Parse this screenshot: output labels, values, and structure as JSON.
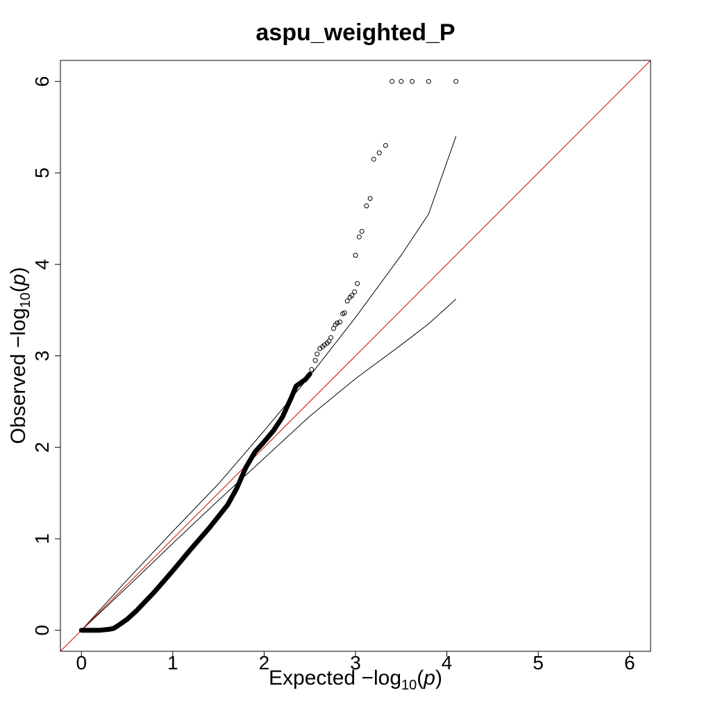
{
  "chart_data": {
    "type": "scatter",
    "title": "aspu_weighted_P",
    "xlabel": {
      "prefix": "Expected ",
      "minus": "−",
      "log": "log",
      "sub": "10",
      "open": "(",
      "p": "p",
      "close": ")"
    },
    "ylabel": {
      "prefix": "Observed ",
      "minus": "−",
      "log": "log",
      "sub": "10",
      "open": "(",
      "p": "p",
      "close": ")"
    },
    "xlim": [
      -0.23,
      6.23
    ],
    "ylim": [
      -0.23,
      6.23
    ],
    "x_ticks": [
      0,
      1,
      2,
      3,
      4,
      5,
      6
    ],
    "y_ticks": [
      0,
      1,
      2,
      3,
      4,
      5,
      6
    ],
    "x_tick_labels": [
      "0",
      "1",
      "2",
      "3",
      "4",
      "5",
      "6"
    ],
    "y_tick_labels": [
      "0",
      "1",
      "2",
      "3",
      "4",
      "5",
      "6"
    ],
    "grid": false,
    "reference_line": {
      "slope": 1,
      "intercept": 0,
      "color": "#cc0000"
    },
    "confidence_band": {
      "upper": [
        [
          0,
          0
        ],
        [
          0.5,
          0.55
        ],
        [
          1,
          1.08
        ],
        [
          1.5,
          1.6
        ],
        [
          2,
          2.18
        ],
        [
          2.5,
          2.78
        ],
        [
          3,
          3.42
        ],
        [
          3.5,
          4.1
        ],
        [
          3.8,
          4.55
        ],
        [
          4.1,
          5.4
        ]
      ],
      "lower": [
        [
          0,
          0
        ],
        [
          0.5,
          0.47
        ],
        [
          1,
          0.95
        ],
        [
          1.5,
          1.42
        ],
        [
          2,
          1.88
        ],
        [
          2.5,
          2.34
        ],
        [
          3,
          2.75
        ],
        [
          3.5,
          3.12
        ],
        [
          3.8,
          3.35
        ],
        [
          4.1,
          3.62
        ]
      ]
    },
    "bulk_curve": [
      [
        0,
        0
      ],
      [
        0.2,
        0
      ],
      [
        0.3,
        0.01
      ],
      [
        0.35,
        0.02
      ],
      [
        0.4,
        0.05
      ],
      [
        0.5,
        0.12
      ],
      [
        0.6,
        0.21
      ],
      [
        0.8,
        0.42
      ],
      [
        1,
        0.65
      ],
      [
        1.2,
        0.89
      ],
      [
        1.4,
        1.12
      ],
      [
        1.6,
        1.37
      ],
      [
        1.7,
        1.55
      ],
      [
        1.8,
        1.78
      ],
      [
        1.9,
        1.95
      ],
      [
        2,
        2.06
      ],
      [
        2.1,
        2.18
      ],
      [
        2.2,
        2.33
      ],
      [
        2.3,
        2.55
      ],
      [
        2.35,
        2.67
      ],
      [
        2.45,
        2.74
      ],
      [
        2.5,
        2.8
      ]
    ],
    "points": [
      [
        2.52,
        2.85
      ],
      [
        2.56,
        2.95
      ],
      [
        2.58,
        3.02
      ],
      [
        2.61,
        3.08
      ],
      [
        2.64,
        3.1
      ],
      [
        2.66,
        3.12
      ],
      [
        2.69,
        3.14
      ],
      [
        2.71,
        3.16
      ],
      [
        2.73,
        3.2
      ],
      [
        2.76,
        3.3
      ],
      [
        2.78,
        3.34
      ],
      [
        2.8,
        3.36
      ],
      [
        2.83,
        3.37
      ],
      [
        2.86,
        3.46
      ],
      [
        2.88,
        3.47
      ],
      [
        2.91,
        3.6
      ],
      [
        2.94,
        3.64
      ],
      [
        2.96,
        3.66
      ],
      [
        2.99,
        3.7
      ],
      [
        3.02,
        3.79
      ],
      [
        3.0,
        4.1
      ],
      [
        3.04,
        4.3
      ],
      [
        3.07,
        4.36
      ],
      [
        3.12,
        4.64
      ],
      [
        3.16,
        4.72
      ],
      [
        3.2,
        5.15
      ],
      [
        3.26,
        5.22
      ],
      [
        3.33,
        5.3
      ],
      [
        3.4,
        6.0
      ],
      [
        3.5,
        6.0
      ],
      [
        3.62,
        6.0
      ],
      [
        3.8,
        6.0
      ],
      [
        4.1,
        6.0
      ]
    ]
  },
  "colors": {
    "reference_line": "#cc0000",
    "points": "#000000",
    "band": "#000000",
    "frame": "#000000"
  }
}
